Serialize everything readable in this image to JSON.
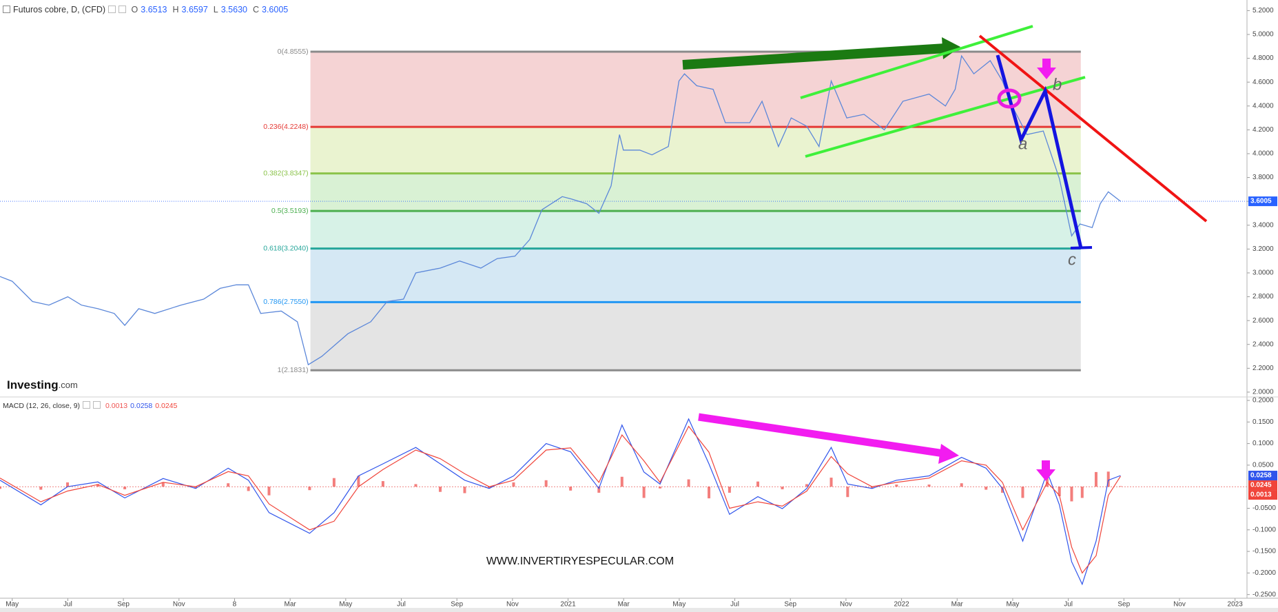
{
  "header": {
    "title": "Futuros cobre, D, (CFD)",
    "ohlc": [
      {
        "key": "O",
        "value": "3.6513"
      },
      {
        "key": "H",
        "value": "3.6597"
      },
      {
        "key": "L",
        "value": "3.5630"
      },
      {
        "key": "C",
        "value": "3.6005"
      }
    ]
  },
  "logo": {
    "main": "Investing",
    "suffix": ".com"
  },
  "watermark": "WWW.INVERTIRYESPECULAR.COM",
  "annotation_letters": [
    "a",
    "b",
    "c"
  ],
  "chart_data": [
    {
      "type": "line",
      "xlim": [
        -0.44,
        44.43
      ],
      "xticks": [
        {
          "value": 0,
          "label": "May"
        },
        {
          "value": 2,
          "label": "Jul"
        },
        {
          "value": 4,
          "label": "Sep"
        },
        {
          "value": 6,
          "label": "Nov"
        },
        8,
        {
          "value": 10,
          "label": "Mar"
        },
        {
          "value": 12,
          "label": "May"
        },
        {
          "value": 14,
          "label": "Jul"
        },
        {
          "value": 16,
          "label": "Sep"
        },
        {
          "value": 18,
          "label": "Nov"
        },
        {
          "value": 20,
          "label": "2021"
        },
        {
          "value": 22,
          "label": "Mar"
        },
        {
          "value": 24,
          "label": "May"
        },
        {
          "value": 26,
          "label": "Jul"
        },
        {
          "value": 28,
          "label": "Sep"
        },
        {
          "value": 30,
          "label": "Nov"
        },
        {
          "value": 32,
          "label": "2022"
        },
        {
          "value": 34,
          "label": "Mar"
        },
        {
          "value": 36,
          "label": "May"
        },
        {
          "value": 38,
          "label": "Jul"
        },
        {
          "value": 40,
          "label": "Sep"
        },
        {
          "value": 42,
          "label": "Nov"
        },
        {
          "value": 44,
          "label": "2023"
        }
      ],
      "ylim": [
        1.965,
        5.289
      ],
      "yticks": [
        {
          "value": 2,
          "label": "2.0000"
        },
        {
          "value": 2.2,
          "label": "2.2000"
        },
        {
          "value": 2.4,
          "label": "2.4000"
        },
        {
          "value": 2.6,
          "label": "2.6000"
        },
        {
          "value": 2.8,
          "label": "2.8000"
        },
        {
          "value": 3,
          "label": "3.0000"
        },
        {
          "value": 3.2,
          "label": "3.2000"
        },
        {
          "value": 3.4,
          "label": "3.4000"
        },
        {
          "value": 3.6,
          "label": "3.6000"
        },
        {
          "value": 3.8,
          "label": "3.8000"
        },
        {
          "value": 4,
          "label": "4.0000"
        },
        {
          "value": 4.2,
          "label": "4.2000"
        },
        {
          "value": 4.4,
          "label": "4.4000"
        },
        {
          "value": 4.6,
          "label": "4.6000"
        },
        {
          "value": 4.8,
          "label": "4.8000"
        },
        {
          "value": 5,
          "label": "5.0000"
        },
        {
          "value": 5.2,
          "label": "5.2000"
        }
      ],
      "series": [
        {
          "color": "#5b87d9",
          "x": [
            -0.44,
            0,
            0.73,
            1.32,
            2,
            2.49,
            3.08,
            3.67,
            4.05,
            4.55,
            5.13,
            6.07,
            6.89,
            7.48,
            8.06,
            8.5,
            8.94,
            9.68,
            10.26,
            10.65,
            11.14,
            12.08,
            12.9,
            13.49,
            14.08,
            14.52,
            15.4,
            16.1,
            16.86,
            17.45,
            18.09,
            18.62,
            19.06,
            19.79,
            20.12,
            20.67,
            21.11,
            21.55,
            21.85,
            21.99,
            22.58,
            23.02,
            23.61,
            23.99,
            24.19,
            24.63,
            25.22,
            25.66,
            26.01,
            26.54,
            26.98,
            27.57,
            28.03,
            28.59,
            29.03,
            29.47,
            30.03,
            30.65,
            31.38,
            32.05,
            32.99,
            33.58,
            33.93,
            34.16,
            34.6,
            35.19,
            35.63,
            35.98,
            36.51,
            37.1,
            37.68,
            38.12,
            38.42,
            38.86,
            39.15,
            39.44,
            39.88
          ],
          "values": [
            2.97,
            2.93,
            2.76,
            2.73,
            2.8,
            2.73,
            2.7,
            2.66,
            2.56,
            2.7,
            2.66,
            2.73,
            2.78,
            2.87,
            2.9,
            2.9,
            2.66,
            2.68,
            2.59,
            2.23,
            2.3,
            2.49,
            2.59,
            2.76,
            2.78,
            3.0,
            3.04,
            3.1,
            3.04,
            3.12,
            3.14,
            3.28,
            3.53,
            3.64,
            3.62,
            3.58,
            3.5,
            3.73,
            4.16,
            4.03,
            4.03,
            3.99,
            4.06,
            4.61,
            4.67,
            4.57,
            4.54,
            4.26,
            4.26,
            4.26,
            4.44,
            4.06,
            4.3,
            4.23,
            4.06,
            4.61,
            4.3,
            4.33,
            4.2,
            4.44,
            4.5,
            4.4,
            4.54,
            4.82,
            4.67,
            4.78,
            4.61,
            4.4,
            4.16,
            4.19,
            3.79,
            3.31,
            3.41,
            3.38,
            3.58,
            3.68,
            3.6005
          ]
        }
      ],
      "fibonacci": {
        "x_range": [
          10.73,
          38.45
        ],
        "levels": [
          {
            "value": 4.8555,
            "label": "0(4.8555)",
            "color": "#8a8a8a",
            "fill": "#f5d3d4"
          },
          {
            "value": 4.2248,
            "label": "0.236(4.2248)",
            "color": "#e53935",
            "fill": "#eaf3d0"
          },
          {
            "value": 3.8347,
            "label": "0.382(3.8347)",
            "color": "#8bc34a",
            "fill": "#d9f1d4"
          },
          {
            "value": 3.5193,
            "label": "0.5(3.5193)",
            "color": "#4caf50",
            "fill": "#d7f2e7"
          },
          {
            "value": 3.204,
            "label": "0.618(3.2040)",
            "color": "#26a69a",
            "fill": "#d5e8f4"
          },
          {
            "value": 2.755,
            "label": "0.786(2.7550)",
            "color": "#2196f3",
            "fill": "#e4e4e4"
          },
          {
            "value": 2.1831,
            "label": "1(2.1831)",
            "color": "#8a8a8a"
          }
        ]
      }
    },
    {
      "type": "macd",
      "title": "MACD (12, 26, close, 9)",
      "xlim": [
        -0.44,
        44.43
      ],
      "ylim": [
        -0.2585,
        0.2064
      ],
      "yticks": [
        {
          "value": 0.2,
          "label": "0.2000"
        },
        {
          "value": 0.15,
          "label": "0.1500"
        },
        {
          "value": 0.1,
          "label": "0.1000"
        },
        {
          "value": 0.05,
          "label": "0.0500"
        },
        {
          "value": -0.05,
          "label": "-0.0500"
        },
        {
          "value": -0.1,
          "label": "-0.1000"
        },
        {
          "value": -0.15,
          "label": "-0.1500"
        },
        {
          "value": -0.2,
          "label": "-0.2000"
        },
        {
          "value": -0.25,
          "label": "-0.2500"
        }
      ],
      "x": [
        -0.44,
        1.03,
        1.99,
        3.08,
        4.05,
        5.43,
        6.6,
        7.77,
        8.5,
        9.24,
        10.7,
        11.58,
        12.46,
        13.34,
        14.52,
        15.4,
        16.28,
        17.16,
        18.04,
        19.21,
        20.09,
        21.11,
        21.94,
        22.73,
        23.31,
        24.34,
        25.07,
        25.81,
        26.83,
        27.71,
        28.59,
        29.47,
        30.06,
        30.94,
        31.82,
        32.99,
        34.16,
        35.04,
        35.63,
        36.36,
        37.24,
        37.68,
        38.12,
        38.5,
        39.0,
        39.44,
        39.88
      ],
      "series": [
        {
          "style": "histogram",
          "color": "#ef5350",
          "values": [
            -0.005,
            -0.007,
            0.01,
            0.006,
            -0.006,
            0.009,
            -0.004,
            0.008,
            -0.01,
            -0.02,
            -0.008,
            0.02,
            0.025,
            0.013,
            0.006,
            -0.012,
            -0.015,
            -0.004,
            0.01,
            0.015,
            -0.009,
            -0.014,
            0.023,
            -0.026,
            -0.004,
            0.017,
            -0.027,
            -0.014,
            0.012,
            -0.006,
            0.006,
            0.021,
            -0.024,
            -0.004,
            0.005,
            0.005,
            0.008,
            -0.007,
            -0.014,
            -0.026,
            0.024,
            -0.022,
            -0.034,
            -0.026,
            0.034,
            0.035,
            0.0013
          ]
        },
        {
          "style": "line",
          "color": "#2f54eb",
          "values": [
            0.015,
            -0.042,
            0,
            0.011,
            -0.026,
            0.019,
            -0.004,
            0.043,
            0.015,
            -0.06,
            -0.108,
            -0.06,
            0.025,
            0.053,
            0.091,
            0.053,
            0.015,
            -0.004,
            0.025,
            0.1,
            0.081,
            -0.004,
            0.143,
            0.034,
            0.006,
            0.157,
            0.053,
            -0.064,
            -0.023,
            -0.051,
            -0.004,
            0.091,
            0.006,
            -0.004,
            0.015,
            0.025,
            0.068,
            0.043,
            -0.004,
            -0.126,
            0.034,
            -0.042,
            -0.174,
            -0.226,
            -0.126,
            0.015,
            0.0258
          ]
        },
        {
          "style": "line",
          "color": "#f0443a",
          "values": [
            0.02,
            -0.035,
            -0.01,
            0.005,
            -0.02,
            0.01,
            0,
            0.035,
            0.025,
            -0.04,
            -0.1,
            -0.08,
            0,
            0.04,
            0.085,
            0.065,
            0.03,
            0,
            0.015,
            0.085,
            0.09,
            0.01,
            0.12,
            0.06,
            0.01,
            0.14,
            0.08,
            -0.05,
            -0.035,
            -0.045,
            -0.01,
            0.07,
            0.03,
            0,
            0.01,
            0.02,
            0.06,
            0.05,
            0.01,
            -0.1,
            0.01,
            -0.02,
            -0.14,
            -0.2,
            -0.16,
            -0.02,
            0.0245
          ]
        }
      ]
    }
  ]
}
